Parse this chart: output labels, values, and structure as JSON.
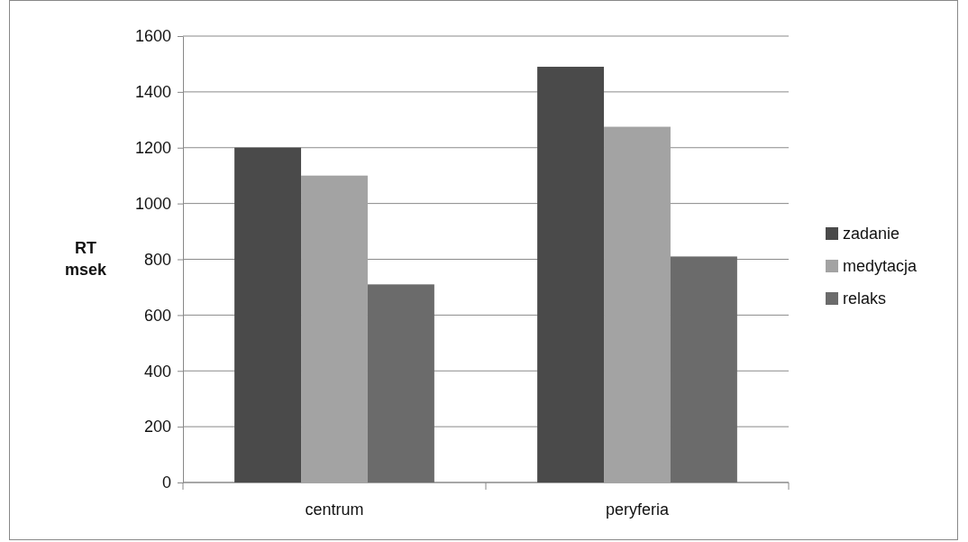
{
  "chart_data": {
    "type": "bar",
    "ylabel": "RT\nmsek",
    "categories": [
      "centrum",
      "peryferia"
    ],
    "series": [
      {
        "name": "zadanie",
        "color": "#4a4a4a",
        "values": [
          1200,
          1490
        ]
      },
      {
        "name": "medytacja",
        "color": "#a3a3a3",
        "values": [
          1100,
          1275
        ]
      },
      {
        "name": "relaks",
        "color": "#6b6b6b",
        "values": [
          710,
          810
        ]
      }
    ],
    "ylim": [
      0,
      1600
    ],
    "yticks": [
      0,
      200,
      400,
      600,
      800,
      1000,
      1200,
      1400,
      1600
    ],
    "grid": "y",
    "legend": "right"
  }
}
